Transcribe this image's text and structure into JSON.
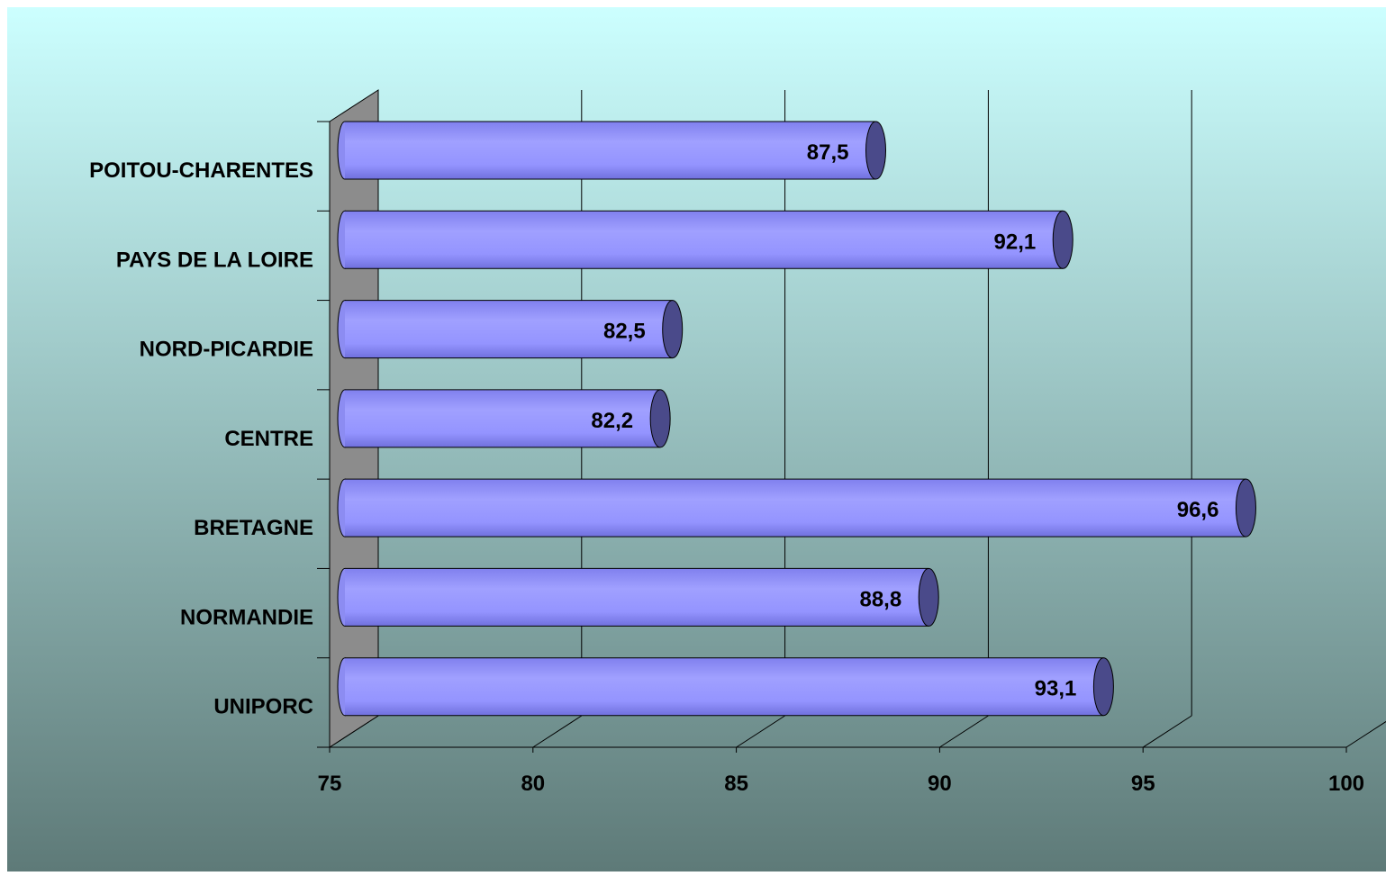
{
  "chart_data": {
    "type": "bar",
    "orientation": "horizontal",
    "style": "3d-cylinder",
    "categories": [
      "POITOU-CHARENTES",
      "PAYS DE LA LOIRE",
      "NORD-PICARDIE",
      "CENTRE",
      "BRETAGNE",
      "NORMANDIE",
      "UNIPORC"
    ],
    "values": [
      87.5,
      92.1,
      82.5,
      82.2,
      96.6,
      88.8,
      93.1
    ],
    "value_labels": [
      "87,5",
      "92,1",
      "82,5",
      "82,2",
      "96,6",
      "88,8",
      "93,1"
    ],
    "xlim": [
      75,
      100
    ],
    "xticks": [
      75,
      80,
      85,
      90,
      95,
      100
    ],
    "title": "",
    "xlabel": "",
    "ylabel": "",
    "grid": "vertical",
    "legend": "none",
    "colors": {
      "background_top": "#ccffff",
      "background_bottom": "#5e7a78",
      "bar_fill": "#9999ff",
      "bar_cap": "#4a4a8a",
      "wall": "#8c8c8c",
      "text": "#000000"
    }
  }
}
